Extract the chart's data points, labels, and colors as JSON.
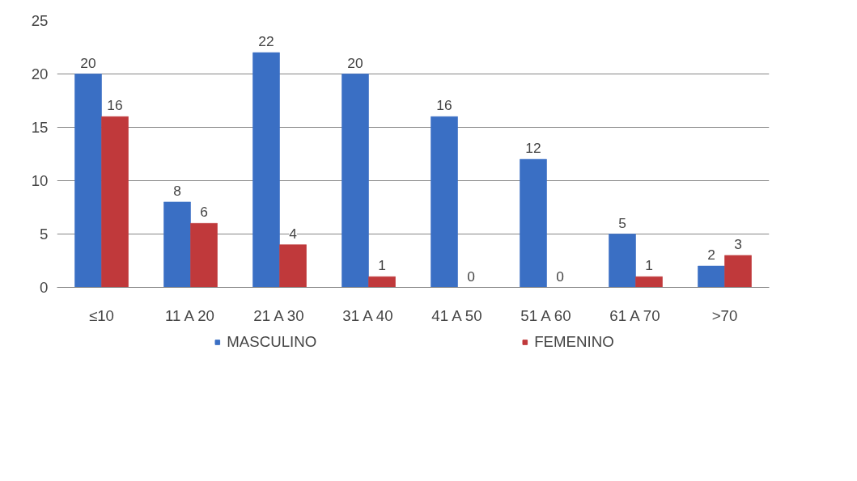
{
  "chart_data": {
    "type": "bar",
    "categories": [
      "≤10",
      "11 A 20",
      "21 A 30",
      "31 A 40",
      "41 A 50",
      "51 A 60",
      "61 A 70",
      ">70"
    ],
    "series": [
      {
        "name": "MASCULINO",
        "color": "#3a6fc4",
        "values": [
          20,
          8,
          22,
          20,
          16,
          12,
          5,
          2
        ]
      },
      {
        "name": "FEMENINO",
        "color": "#c0393b",
        "values": [
          16,
          6,
          4,
          1,
          0,
          0,
          1,
          3
        ]
      }
    ],
    "ylim": [
      0,
      25
    ],
    "yticks": [
      0,
      5,
      10,
      15,
      20,
      25
    ],
    "grid": "y",
    "legend": "bottom",
    "data_labels": true
  }
}
